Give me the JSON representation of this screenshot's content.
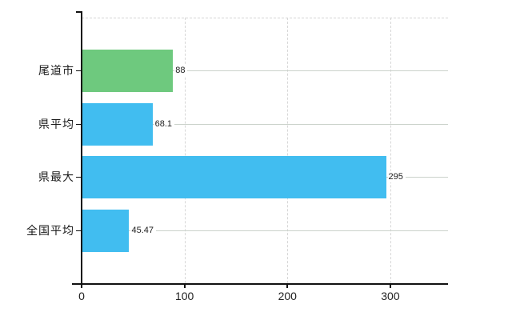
{
  "chart_data": {
    "type": "bar",
    "orientation": "horizontal",
    "title": "",
    "xlabel": "",
    "ylabel": "",
    "categories": [
      "尾道市",
      "県平均",
      "県最大",
      "全国平均"
    ],
    "values": [
      88,
      68.1,
      295,
      45.47
    ],
    "value_labels": [
      "88",
      "68.1",
      "295",
      "45.47"
    ],
    "bar_colors": [
      "#6ec97e",
      "#41bdf0",
      "#41bdf0",
      "#41bdf0"
    ],
    "xlim": [
      0,
      356
    ],
    "x_ticks": [
      0,
      100,
      200,
      300
    ],
    "x_tick_labels": [
      "0",
      "100",
      "200",
      "300"
    ],
    "grid": "vertical dashed gridlines at ticks, solid light line at each category center, dashed top border",
    "legend": "none"
  },
  "colors": {
    "highlight_bar": "#6ec97e",
    "default_bar": "#41bdf0",
    "axis": "#111111",
    "dashed_grid": "#d7d7d7",
    "category_line": "#cbd2cb",
    "text": "#1c1c1c",
    "background": "#ffffff"
  }
}
